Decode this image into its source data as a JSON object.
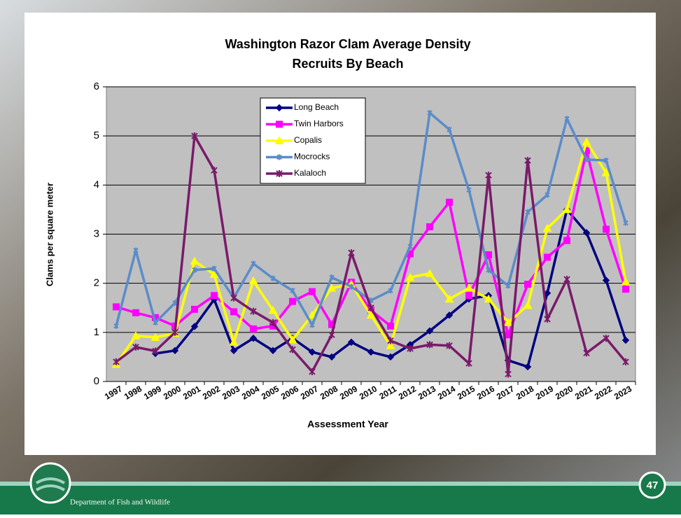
{
  "chart_data": {
    "type": "line",
    "title": "Washington Razor Clam Average Density",
    "subtitle": "Recruits By Beach",
    "x_label": "Assessment Year",
    "y_label": "Clams per square meter",
    "categories": [
      "1997",
      "1998",
      "1999",
      "2000",
      "2001",
      "2002",
      "2003",
      "2004",
      "2005",
      "2006",
      "2007",
      "2008",
      "2009",
      "2010",
      "2011",
      "2012",
      "2013",
      "2014",
      "2015",
      "2016",
      "2017",
      "2018",
      "2019",
      "2020",
      "2021",
      "2022",
      "2023"
    ],
    "ylim": [
      0,
      6
    ],
    "yticks": [
      0,
      1,
      2,
      3,
      4,
      5,
      6
    ],
    "grid": true,
    "series": [
      {
        "name": "Long Beach",
        "color": "#000080",
        "marker": "diamond",
        "values": [
          null,
          null,
          0.57,
          0.63,
          1.12,
          1.67,
          0.63,
          0.88,
          0.63,
          0.88,
          0.6,
          0.5,
          0.8,
          0.6,
          0.5,
          0.75,
          1.03,
          1.35,
          1.68,
          1.75,
          0.43,
          0.3,
          1.8,
          3.5,
          3.03,
          2.06,
          0.84
        ]
      },
      {
        "name": "Twin Harbors",
        "color": "#ff00ff",
        "marker": "square",
        "values": [
          1.52,
          1.4,
          1.3,
          1.13,
          1.47,
          1.75,
          1.42,
          1.07,
          1.13,
          1.63,
          1.83,
          1.16,
          2.02,
          1.45,
          1.13,
          2.6,
          3.15,
          3.65,
          1.75,
          2.58,
          0.95,
          1.98,
          2.53,
          2.87,
          4.7,
          3.1,
          1.88
        ]
      },
      {
        "name": "Copalis",
        "color": "#ffff00",
        "marker": "triangle",
        "values": [
          0.35,
          0.93,
          0.9,
          0.98,
          2.45,
          2.18,
          0.8,
          2.05,
          1.45,
          0.85,
          1.35,
          1.9,
          1.98,
          1.35,
          0.73,
          2.12,
          2.2,
          1.68,
          1.9,
          1.68,
          1.2,
          1.55,
          3.12,
          3.5,
          4.88,
          4.25,
          2.03
        ]
      },
      {
        "name": "Mocrocks",
        "color": "#5b8cc8",
        "marker": "star",
        "values": [
          1.13,
          2.67,
          1.2,
          1.6,
          2.27,
          2.3,
          1.7,
          2.4,
          2.1,
          1.85,
          1.15,
          2.12,
          1.93,
          1.65,
          1.85,
          2.75,
          5.47,
          5.13,
          3.9,
          2.27,
          1.95,
          3.45,
          3.8,
          5.35,
          4.52,
          4.5,
          3.23
        ]
      },
      {
        "name": "Kalaloch",
        "color": "#7a1a6a",
        "marker": "cross",
        "values": [
          0.4,
          0.7,
          0.62,
          1.0,
          5.0,
          4.3,
          1.7,
          1.43,
          1.2,
          0.65,
          0.2,
          0.95,
          2.62,
          1.5,
          0.83,
          0.67,
          0.75,
          0.73,
          0.37,
          4.2,
          0.15,
          4.5,
          1.27,
          2.08,
          0.58,
          0.88,
          0.4
        ]
      }
    ]
  },
  "footer": {
    "organization": "Department of Fish and Wildlife",
    "page_number": "47"
  }
}
